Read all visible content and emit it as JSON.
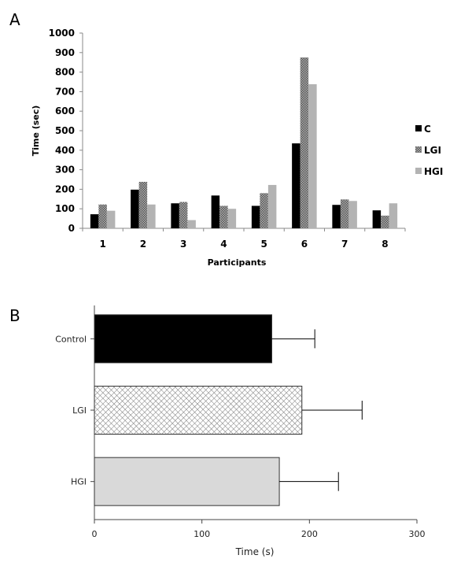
{
  "panels": {
    "a": {
      "letter": "A"
    },
    "b": {
      "letter": "B"
    }
  },
  "colors": {
    "C": "#000000",
    "LGI": "#8c8c8c",
    "HGI": "#b3b3b3",
    "Control_B": "#000000",
    "LGI_B": "#ffffff",
    "HGI_B": "#d9d9d9"
  },
  "chart_data": [
    {
      "type": "bar",
      "orientation": "vertical",
      "categories": [
        "1",
        "2",
        "3",
        "4",
        "5",
        "6",
        "7",
        "8"
      ],
      "series": [
        {
          "name": "C",
          "values": [
            72,
            198,
            128,
            168,
            115,
            435,
            120,
            92
          ]
        },
        {
          "name": "LGI",
          "values": [
            122,
            238,
            135,
            115,
            180,
            875,
            148,
            65
          ]
        },
        {
          "name": "HGI",
          "values": [
            90,
            122,
            42,
            100,
            222,
            738,
            140,
            128
          ]
        }
      ],
      "xlabel": "Participants",
      "ylabel": "Time (sec)",
      "ylim": [
        0,
        1000
      ],
      "yticks": [
        0,
        100,
        200,
        300,
        400,
        500,
        600,
        700,
        800,
        900,
        1000
      ],
      "grid": false,
      "legend": "right"
    },
    {
      "type": "bar",
      "orientation": "horizontal",
      "categories": [
        "Control",
        "LGI",
        "HGI"
      ],
      "values": [
        165,
        193,
        172
      ],
      "error": [
        40,
        56,
        55
      ],
      "xlabel": "Time (s)",
      "xlim": [
        0,
        300
      ],
      "xticks": [
        0,
        100,
        200,
        300
      ],
      "grid": false
    }
  ]
}
